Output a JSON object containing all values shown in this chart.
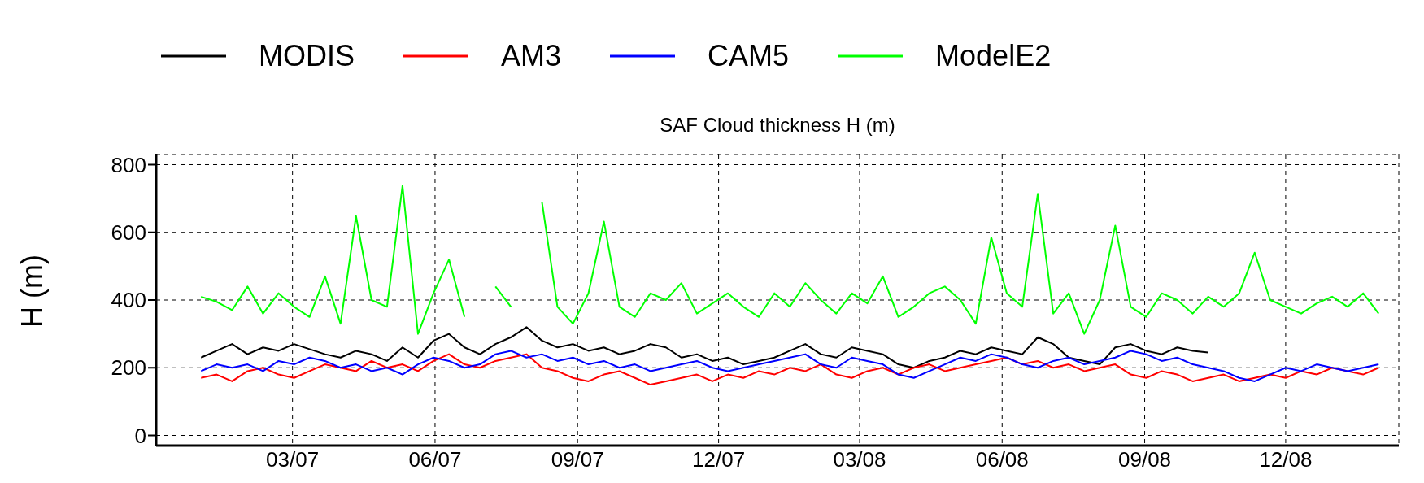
{
  "chart_data": {
    "type": "line",
    "title": "SAF Cloud thickness H (m)",
    "ylabel": "H (m)",
    "x": [
      "2007-01-01",
      "2007-01-11",
      "2007-01-21",
      "2007-01-31",
      "2007-02-10",
      "2007-02-20",
      "2007-03-02",
      "2007-03-12",
      "2007-03-22",
      "2007-04-01",
      "2007-04-11",
      "2007-04-21",
      "2007-05-01",
      "2007-05-11",
      "2007-05-21",
      "2007-05-31",
      "2007-06-10",
      "2007-06-20",
      "2007-06-30",
      "2007-07-10",
      "2007-07-20",
      "2007-07-30",
      "2007-08-09",
      "2007-08-19",
      "2007-08-29",
      "2007-09-08",
      "2007-09-18",
      "2007-09-28",
      "2007-10-08",
      "2007-10-18",
      "2007-10-28",
      "2007-11-07",
      "2007-11-17",
      "2007-11-27",
      "2007-12-07",
      "2007-12-17",
      "2007-12-27",
      "2008-01-06",
      "2008-01-16",
      "2008-01-26",
      "2008-02-05",
      "2008-02-15",
      "2008-02-25",
      "2008-03-06",
      "2008-03-16",
      "2008-03-26",
      "2008-04-05",
      "2008-04-15",
      "2008-04-25",
      "2008-05-05",
      "2008-05-15",
      "2008-05-25",
      "2008-06-04",
      "2008-06-14",
      "2008-06-24",
      "2008-07-04",
      "2008-07-14",
      "2008-07-24",
      "2008-08-03",
      "2008-08-13",
      "2008-08-23",
      "2008-09-02",
      "2008-09-12",
      "2008-09-22",
      "2008-10-02",
      "2008-10-12",
      "2008-10-22",
      "2008-11-01",
      "2008-11-11",
      "2008-11-21",
      "2008-12-01",
      "2008-12-11",
      "2008-12-21",
      "2008-12-31",
      "2009-01-10",
      "2009-01-20",
      "2009-01-30"
    ],
    "series": [
      {
        "name": "MODIS",
        "color": "#000000",
        "values": [
          230,
          250,
          270,
          240,
          260,
          250,
          270,
          255,
          240,
          230,
          250,
          240,
          220,
          260,
          230,
          280,
          300,
          260,
          240,
          270,
          290,
          320,
          280,
          260,
          270,
          250,
          260,
          240,
          250,
          270,
          260,
          230,
          240,
          220,
          230,
          210,
          220,
          230,
          250,
          270,
          240,
          230,
          260,
          250,
          240,
          210,
          200,
          220,
          230,
          250,
          240,
          260,
          250,
          240,
          290,
          270,
          230,
          220,
          210,
          260,
          270,
          250,
          240,
          260,
          250,
          245,
          null,
          null,
          null,
          null,
          null,
          null,
          null,
          null,
          null,
          null,
          null
        ]
      },
      {
        "name": "AM3",
        "color": "#ff0000",
        "values": [
          170,
          180,
          160,
          190,
          200,
          180,
          170,
          190,
          210,
          200,
          190,
          220,
          200,
          210,
          190,
          220,
          240,
          210,
          200,
          220,
          230,
          240,
          200,
          190,
          170,
          160,
          180,
          190,
          170,
          150,
          160,
          170,
          180,
          160,
          180,
          170,
          190,
          180,
          200,
          190,
          210,
          180,
          170,
          190,
          200,
          180,
          200,
          210,
          190,
          200,
          210,
          220,
          230,
          210,
          220,
          200,
          210,
          190,
          200,
          210,
          180,
          170,
          190,
          180,
          160,
          170,
          180,
          160,
          170,
          180,
          170,
          190,
          180,
          200,
          190,
          180,
          200
        ]
      },
      {
        "name": "CAM5",
        "color": "#0000ff",
        "values": [
          190,
          210,
          200,
          210,
          190,
          220,
          210,
          230,
          220,
          200,
          210,
          190,
          200,
          180,
          210,
          230,
          220,
          200,
          210,
          240,
          250,
          230,
          240,
          220,
          230,
          210,
          220,
          200,
          210,
          190,
          200,
          210,
          220,
          200,
          190,
          200,
          210,
          220,
          230,
          240,
          210,
          200,
          230,
          220,
          210,
          180,
          170,
          190,
          210,
          230,
          220,
          240,
          230,
          210,
          200,
          220,
          230,
          210,
          220,
          230,
          250,
          240,
          220,
          230,
          210,
          200,
          190,
          170,
          160,
          180,
          200,
          190,
          210,
          200,
          190,
          200,
          210
        ]
      },
      {
        "name": "ModelE2",
        "color": "#00ff00",
        "values": [
          410,
          395,
          370,
          440,
          360,
          420,
          380,
          350,
          470,
          330,
          648,
          400,
          380,
          738,
          300,
          420,
          520,
          350,
          null,
          440,
          380,
          null,
          690,
          380,
          330,
          420,
          632,
          380,
          350,
          420,
          400,
          450,
          360,
          390,
          420,
          380,
          350,
          420,
          380,
          450,
          400,
          360,
          420,
          390,
          470,
          350,
          380,
          420,
          440,
          400,
          330,
          585,
          420,
          380,
          714,
          360,
          420,
          300,
          400,
          620,
          380,
          350,
          420,
          400,
          360,
          410,
          380,
          420,
          540,
          400,
          380,
          360,
          390,
          410,
          380,
          420,
          360
        ]
      }
    ],
    "xlim": [
      "2006-12-03",
      "2009-02-12"
    ],
    "xticks": [
      {
        "value": "2007-03-01",
        "label": "03/07"
      },
      {
        "value": "2007-06-01",
        "label": "06/07"
      },
      {
        "value": "2007-09-01",
        "label": "09/07"
      },
      {
        "value": "2007-12-01",
        "label": "12/07"
      },
      {
        "value": "2008-03-01",
        "label": "03/08"
      },
      {
        "value": "2008-06-01",
        "label": "06/08"
      },
      {
        "value": "2008-09-01",
        "label": "09/08"
      },
      {
        "value": "2008-12-01",
        "label": "12/08"
      }
    ],
    "ylim": [
      -30,
      830
    ],
    "yticks": [
      0,
      200,
      400,
      600,
      800
    ],
    "grid": true,
    "legend": "top"
  }
}
